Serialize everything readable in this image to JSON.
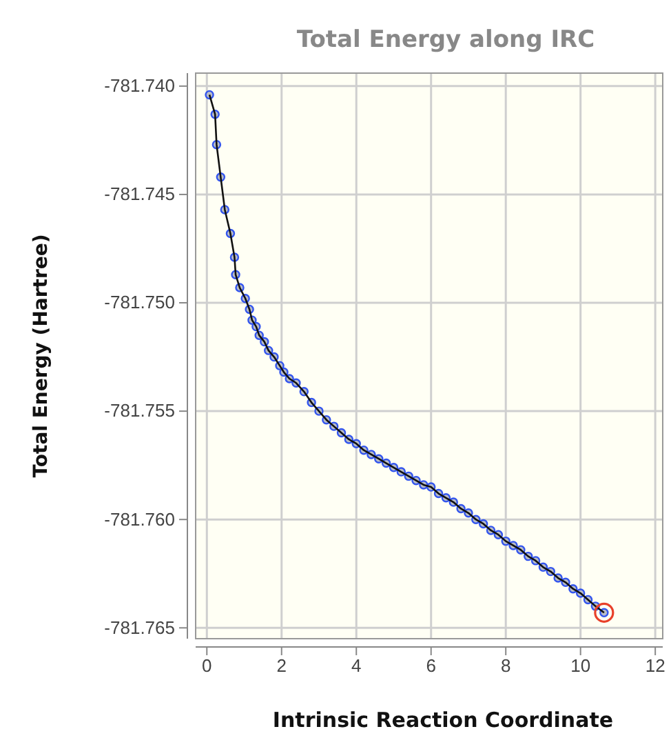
{
  "chart_data": {
    "type": "line",
    "title": "Total Energy along IRC",
    "xlabel": "Intrinsic Reaction Coordinate",
    "ylabel": "Total Energy (Hartree)",
    "xlim": [
      -0.3,
      12.2
    ],
    "ylim": [
      -781.7655,
      -781.7394
    ],
    "xticks": [
      0,
      2,
      4,
      6,
      8,
      10,
      12
    ],
    "yticks": [
      {
        "value": -781.765,
        "label": "-781.765"
      },
      {
        "value": -781.76,
        "label": "-781.760"
      },
      {
        "value": -781.755,
        "label": "-781.755"
      },
      {
        "value": -781.75,
        "label": "-781.750"
      },
      {
        "value": -781.745,
        "label": "-781.745"
      },
      {
        "value": -781.74,
        "label": "-781.740"
      }
    ],
    "grid": true,
    "marker": "circle",
    "line_style": "solid",
    "series": [
      {
        "color": "#3355ee",
        "x": [
          0.07,
          0.22,
          0.26,
          0.37,
          0.48,
          0.63,
          0.74,
          0.77,
          0.88,
          1.03,
          1.14,
          1.21,
          1.32,
          1.4,
          1.54,
          1.65,
          1.8,
          1.95,
          2.06,
          2.21,
          2.39,
          2.6,
          2.8,
          3.0,
          3.2,
          3.4,
          3.6,
          3.8,
          4.0,
          4.2,
          4.4,
          4.6,
          4.8,
          5.0,
          5.2,
          5.4,
          5.6,
          5.8,
          6.0,
          6.2,
          6.4,
          6.6,
          6.8,
          7.0,
          7.2,
          7.4,
          7.6,
          7.8,
          8.0,
          8.2,
          8.4,
          8.6,
          8.8,
          9.0,
          9.2,
          9.4,
          9.6,
          9.8,
          10.0,
          10.2,
          10.4,
          10.63
        ],
        "values": [
          -781.7404,
          -781.7413,
          -781.7427,
          -781.7442,
          -781.7457,
          -781.7468,
          -781.7479,
          -781.7487,
          -781.7493,
          -781.7498,
          -781.7503,
          -781.7508,
          -781.7511,
          -781.7515,
          -781.7518,
          -781.7522,
          -781.7525,
          -781.7529,
          -781.7532,
          -781.7535,
          -781.7537,
          -781.7541,
          -781.7546,
          -781.755,
          -781.7554,
          -781.7557,
          -781.756,
          -781.7563,
          -781.7565,
          -781.7568,
          -781.757,
          -781.7572,
          -781.7574,
          -781.7576,
          -781.7578,
          -781.758,
          -781.7582,
          -781.7584,
          -781.7585,
          -781.7588,
          -781.759,
          -781.7592,
          -781.7595,
          -781.7597,
          -781.76,
          -781.7602,
          -781.7605,
          -781.7607,
          -781.761,
          -781.7612,
          -781.7614,
          -781.7617,
          -781.7619,
          -781.7622,
          -781.7624,
          -781.7627,
          -781.7629,
          -781.7632,
          -781.7634,
          -781.7637,
          -781.764,
          -781.7643
        ]
      },
      {
        "type": "scatter",
        "color": "#e8402a",
        "x": [
          10.63
        ],
        "values": [
          -781.7643
        ]
      }
    ]
  }
}
